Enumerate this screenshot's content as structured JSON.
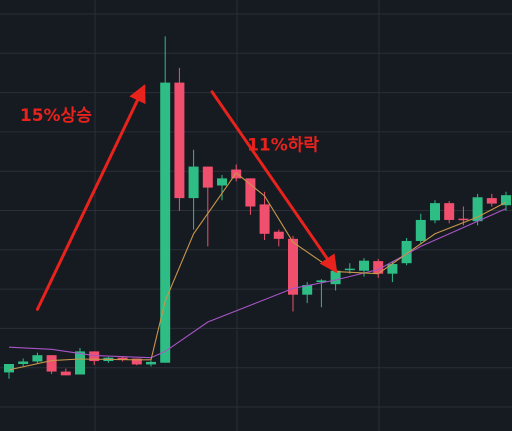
{
  "chart_data": {
    "type": "candlestick",
    "grid": true,
    "colors": {
      "background": "#161a21",
      "grid": "#2a2f38",
      "up": "#2ebd85",
      "down": "#f0506e",
      "ma_short": "#c8964a",
      "ma_long": "#a855c8",
      "annotation": "#e8221c"
    },
    "y_range": [
      0,
      100
    ],
    "candles": [
      {
        "o": 13.0,
        "h": 15.0,
        "l": 11.5,
        "c": 15.0
      },
      {
        "o": 15.0,
        "h": 16.3,
        "l": 14.5,
        "c": 15.6
      },
      {
        "o": 15.6,
        "h": 17.7,
        "l": 15.0,
        "c": 17.1
      },
      {
        "o": 17.1,
        "h": 17.1,
        "l": 12.6,
        "c": 13.2
      },
      {
        "o": 13.2,
        "h": 13.9,
        "l": 12.3,
        "c": 12.3
      },
      {
        "o": 12.5,
        "h": 18.8,
        "l": 12.5,
        "c": 18.0
      },
      {
        "o": 18.0,
        "h": 18.0,
        "l": 14.8,
        "c": 15.7
      },
      {
        "o": 15.7,
        "h": 16.7,
        "l": 15.3,
        "c": 16.5
      },
      {
        "o": 16.5,
        "h": 16.7,
        "l": 15.6,
        "c": 16.1
      },
      {
        "o": 16.3,
        "h": 16.3,
        "l": 14.7,
        "c": 14.9
      },
      {
        "o": 14.9,
        "h": 15.8,
        "l": 14.4,
        "c": 15.5
      },
      {
        "o": 15.3,
        "h": 93.0,
        "l": 15.3,
        "c": 82.0
      },
      {
        "o": 82.0,
        "h": 85.5,
        "l": 51.5,
        "c": 54.5
      },
      {
        "o": 54.5,
        "h": 66.0,
        "l": 47.0,
        "c": 62.0
      },
      {
        "o": 62.0,
        "h": 62.0,
        "l": 43.0,
        "c": 57.0
      },
      {
        "o": 57.5,
        "h": 60.0,
        "l": 54.0,
        "c": 59.2
      },
      {
        "o": 61.3,
        "h": 62.5,
        "l": 58.5,
        "c": 59.2
      },
      {
        "o": 59.2,
        "h": 59.2,
        "l": 50.5,
        "c": 52.5
      },
      {
        "o": 53.0,
        "h": 56.0,
        "l": 44.5,
        "c": 46.0
      },
      {
        "o": 46.5,
        "h": 47.0,
        "l": 43.0,
        "c": 44.8
      },
      {
        "o": 44.8,
        "h": 45.5,
        "l": 27.5,
        "c": 31.5
      },
      {
        "o": 31.5,
        "h": 34.5,
        "l": 29.5,
        "c": 33.8
      },
      {
        "o": 34.5,
        "h": 35.2,
        "l": 28.5,
        "c": 34.9
      },
      {
        "o": 34.0,
        "h": 37.8,
        "l": 32.5,
        "c": 37.2
      },
      {
        "o": 37.5,
        "h": 39.0,
        "l": 36.5,
        "c": 37.7
      },
      {
        "o": 37.2,
        "h": 40.2,
        "l": 35.8,
        "c": 39.6
      },
      {
        "o": 39.5,
        "h": 40.0,
        "l": 35.5,
        "c": 36.5
      },
      {
        "o": 36.5,
        "h": 39.5,
        "l": 34.5,
        "c": 38.8
      },
      {
        "o": 39.0,
        "h": 45.0,
        "l": 38.5,
        "c": 44.3
      },
      {
        "o": 44.3,
        "h": 50.8,
        "l": 43.5,
        "c": 49.3
      },
      {
        "o": 49.2,
        "h": 54.0,
        "l": 48.5,
        "c": 53.3
      },
      {
        "o": 53.3,
        "h": 53.8,
        "l": 48.5,
        "c": 49.3
      },
      {
        "o": 49.6,
        "h": 52.5,
        "l": 48.0,
        "c": 49.3
      },
      {
        "o": 49.0,
        "h": 55.5,
        "l": 48.0,
        "c": 54.7
      },
      {
        "o": 54.5,
        "h": 55.5,
        "l": 52.5,
        "c": 53.2
      },
      {
        "o": 52.8,
        "h": 56.0,
        "l": 51.5,
        "c": 55.2
      }
    ],
    "ma_short": [
      [
        0,
        13.6
      ],
      [
        3,
        15.8
      ],
      [
        5,
        16.2
      ],
      [
        9,
        16.0
      ],
      [
        10,
        16.0
      ],
      [
        11,
        30.0
      ],
      [
        13,
        46.0
      ],
      [
        16,
        60.5
      ],
      [
        18,
        55.0
      ],
      [
        20,
        44.0
      ],
      [
        23,
        37.0
      ],
      [
        26,
        36.5
      ],
      [
        30,
        46.0
      ],
      [
        33,
        50.0
      ],
      [
        35,
        53.5
      ]
    ],
    "ma_long": [
      [
        0,
        19.0
      ],
      [
        3,
        18.5
      ],
      [
        6,
        17.0
      ],
      [
        10,
        16.5
      ],
      [
        11,
        18.0
      ],
      [
        14,
        25.0
      ],
      [
        17,
        29.0
      ],
      [
        20,
        33.0
      ],
      [
        23,
        35.0
      ],
      [
        26,
        37.5
      ],
      [
        29,
        43.0
      ],
      [
        33,
        49.0
      ],
      [
        35,
        52.0
      ]
    ],
    "annotations": [
      {
        "text": "15%상승",
        "from": [
          2.0,
          28.0
        ],
        "to": [
          9.5,
          81.0
        ],
        "anchor": [
          3.3,
          72.8
        ]
      },
      {
        "text": "11%하락",
        "from": [
          14.3,
          79.8
        ],
        "to": [
          23.0,
          37.2
        ],
        "anchor": [
          19.3,
          65.8
        ]
      }
    ]
  }
}
